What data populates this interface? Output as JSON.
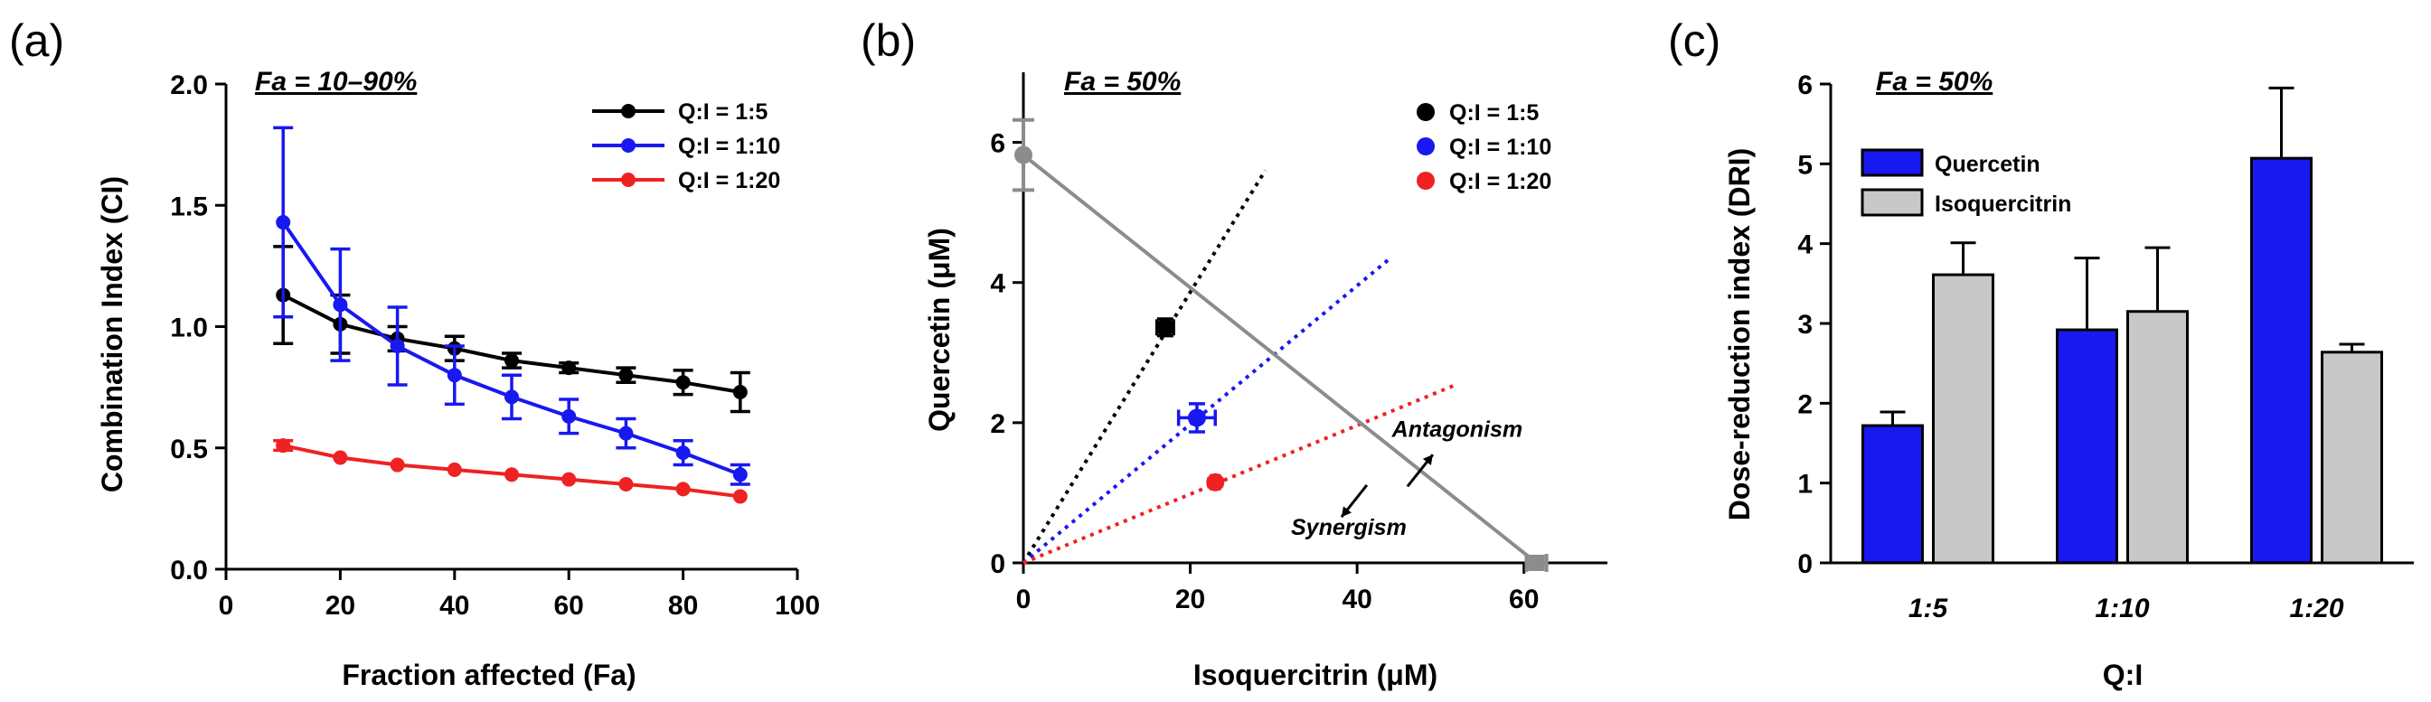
{
  "chart_data": [
    {
      "type": "line",
      "panel_label": "(a)",
      "note": "Fa = 10–90%",
      "xlabel": "Fraction affected (Fa)",
      "ylabel": "Combination Index (CI)",
      "xlim": [
        0,
        100
      ],
      "ylim": [
        0,
        2.0
      ],
      "xticks": [
        "0",
        "20",
        "40",
        "60",
        "80",
        "100"
      ],
      "yticks": [
        "0.0",
        "0.5",
        "1.0",
        "1.5",
        "2.0"
      ],
      "xtick_values": [
        0,
        20,
        40,
        60,
        80,
        100
      ],
      "ytick_values": [
        0,
        0.5,
        1.0,
        1.5,
        2.0
      ],
      "legend_position": "top-right",
      "x": [
        10,
        20,
        30,
        40,
        50,
        60,
        70,
        80,
        90
      ],
      "series": [
        {
          "name": "Q:I = 1:5",
          "color": "#000000",
          "values": [
            1.13,
            1.01,
            0.95,
            0.91,
            0.86,
            0.83,
            0.8,
            0.77,
            0.73
          ],
          "errors": [
            0.2,
            0.12,
            0.05,
            0.05,
            0.03,
            0.02,
            0.03,
            0.05,
            0.08
          ]
        },
        {
          "name": "Q:I = 1:10",
          "color": "#1818f0",
          "values": [
            1.43,
            1.09,
            0.92,
            0.8,
            0.71,
            0.63,
            0.56,
            0.48,
            0.39
          ],
          "errors": [
            0.39,
            0.23,
            0.16,
            0.12,
            0.09,
            0.07,
            0.06,
            0.05,
            0.04
          ]
        },
        {
          "name": "Q:I = 1:20",
          "color": "#ee2222",
          "values": [
            0.51,
            0.46,
            0.43,
            0.41,
            0.39,
            0.37,
            0.35,
            0.33,
            0.3
          ],
          "errors": [
            0.02,
            0.01,
            0.01,
            0.01,
            0.01,
            0.01,
            0.01,
            0.01,
            0.01
          ]
        }
      ]
    },
    {
      "type": "scatter",
      "panel_label": "(b)",
      "note": "Fa = 50%",
      "xlabel": "Isoquercitrin (μM)",
      "ylabel": "Quercetin (μM)",
      "xlim": [
        0,
        70
      ],
      "ylim": [
        0,
        7
      ],
      "xticks": [
        "0",
        "20",
        "40",
        "60"
      ],
      "yticks": [
        "0",
        "2",
        "4",
        "6"
      ],
      "xtick_values": [
        0,
        20,
        40,
        60
      ],
      "ytick_values": [
        0,
        2,
        4,
        6
      ],
      "legend_position": "top-right",
      "isobologram_line": {
        "x": [
          0,
          61.5
        ],
        "y": [
          5.82,
          0
        ],
        "color": "#8c8c8c"
      },
      "isobologram_endpoints": [
        {
          "x": 0,
          "y": 5.82,
          "yerr": 0.5
        },
        {
          "x": 61.5,
          "y": 0,
          "xerr": 1.2
        }
      ],
      "series": [
        {
          "name": "Q:I = 1:5",
          "color": "#000000",
          "x": 17.0,
          "y": 3.36,
          "xerr": 1.0,
          "yerr": 0.12,
          "ray_to": {
            "x": 29,
            "y": 5.6
          }
        },
        {
          "name": "Q:I = 1:10",
          "color": "#1818f0",
          "x": 20.8,
          "y": 2.07,
          "xerr": 2.2,
          "yerr": 0.2,
          "ray_to": {
            "x": 44,
            "y": 4.35
          }
        },
        {
          "name": "Q:I = 1:20",
          "color": "#ee2222",
          "x": 23.0,
          "y": 1.15,
          "xerr": 0.5,
          "yerr": 0.05,
          "ray_to": {
            "x": 52,
            "y": 2.55
          }
        }
      ],
      "annotations": [
        {
          "text": "Antagonism",
          "x": 52,
          "y": 1.8,
          "arrow_direction": "away-from-origin"
        },
        {
          "text": "Synergism",
          "x": 39,
          "y": 0.4,
          "arrow_direction": "toward-origin"
        }
      ]
    },
    {
      "type": "bar",
      "panel_label": "(c)",
      "note": "Fa = 50%",
      "xlabel": "Q:I",
      "ylabel": "Dose-reduction index (DRI)",
      "ylim": [
        0,
        6
      ],
      "yticks": [
        "0",
        "1",
        "2",
        "3",
        "4",
        "5",
        "6"
      ],
      "ytick_values": [
        0,
        1,
        2,
        3,
        4,
        5,
        6
      ],
      "categories": [
        "1:5",
        "1:10",
        "1:20"
      ],
      "legend_position": "top-left",
      "series": [
        {
          "name": "Quercetin",
          "color": "#1818f0",
          "values": [
            1.72,
            2.92,
            5.07
          ],
          "errors": [
            0.17,
            0.9,
            0.88
          ]
        },
        {
          "name": "Isoquercitrin",
          "color": "#c8c8c8",
          "values": [
            3.61,
            3.15,
            2.64
          ],
          "errors": [
            0.4,
            0.8,
            0.1
          ]
        }
      ]
    }
  ]
}
